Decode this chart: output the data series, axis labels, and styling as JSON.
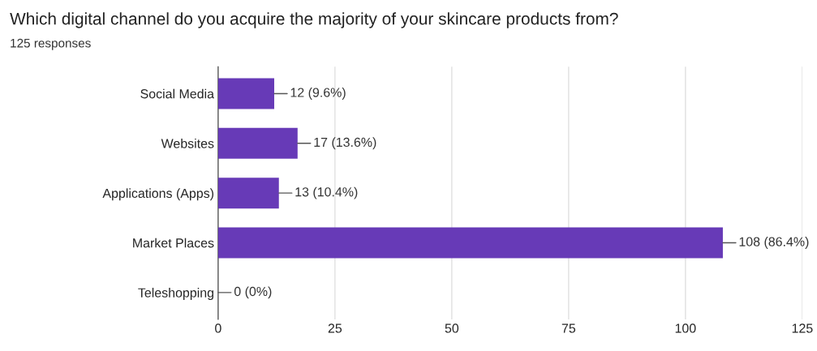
{
  "chart_data": {
    "type": "bar",
    "orientation": "horizontal",
    "title": "Which digital channel do you acquire the majority of your skincare products from?",
    "subtitle": "125 responses",
    "categories": [
      "Social Media",
      "Websites",
      "Applications (Apps)",
      "Market Places",
      "Teleshopping"
    ],
    "values": [
      12,
      17,
      13,
      108,
      0
    ],
    "value_labels": [
      "12 (9.6%)",
      "17 (13.6%)",
      "13 (10.4%)",
      "108 (86.4%)",
      "0 (0%)"
    ],
    "color": "#673ab7",
    "xlim": [
      0,
      125
    ],
    "xticks": [
      0,
      25,
      50,
      75,
      100,
      125
    ],
    "grid": "x",
    "legend": false
  }
}
